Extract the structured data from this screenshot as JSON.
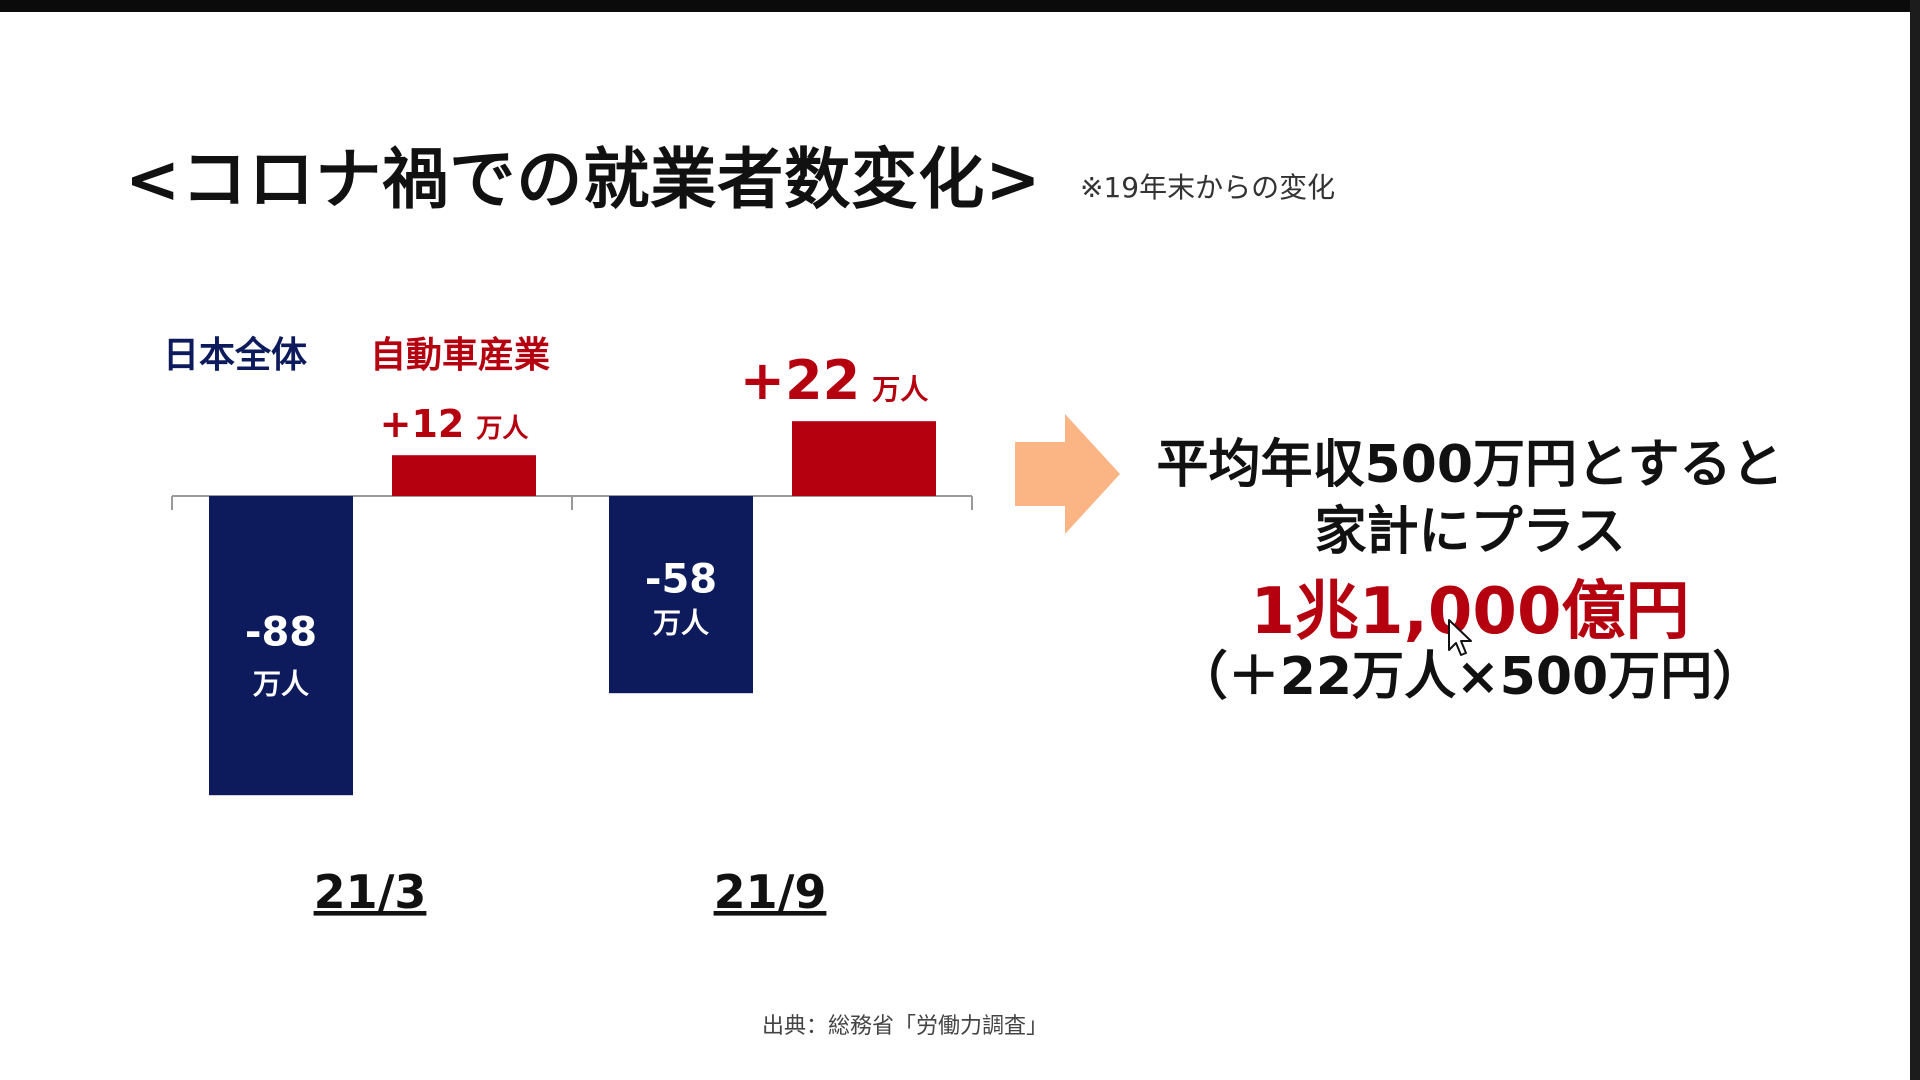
{
  "title": "<コロナ禍での就業者数変化>",
  "title_note": "※19年末からの変化",
  "legend": {
    "japan": "日本全体",
    "auto": "自動車産業"
  },
  "colors": {
    "japan": "#0d1b5c",
    "auto": "#b50010",
    "arrow": "#fbb585"
  },
  "chart_data": {
    "type": "bar",
    "categories": [
      "21/3",
      "21/9"
    ],
    "series": [
      {
        "name": "日本全体",
        "values": [
          -88,
          -58
        ],
        "labels": [
          "-88",
          "-58"
        ],
        "unit": "万人"
      },
      {
        "name": "自動車産業",
        "values": [
          12,
          22
        ],
        "labels": [
          "+12",
          "+22"
        ],
        "unit": "万人"
      }
    ],
    "ylabel": "",
    "grid": false,
    "legend": "top-left"
  },
  "summary": {
    "line1": "平均年収500万円とすると",
    "line2": "家計にプラス",
    "line3": "1兆1,000億円",
    "line4": "（＋22万人×500万円）"
  },
  "source": "出典：総務省「労働力調査」"
}
